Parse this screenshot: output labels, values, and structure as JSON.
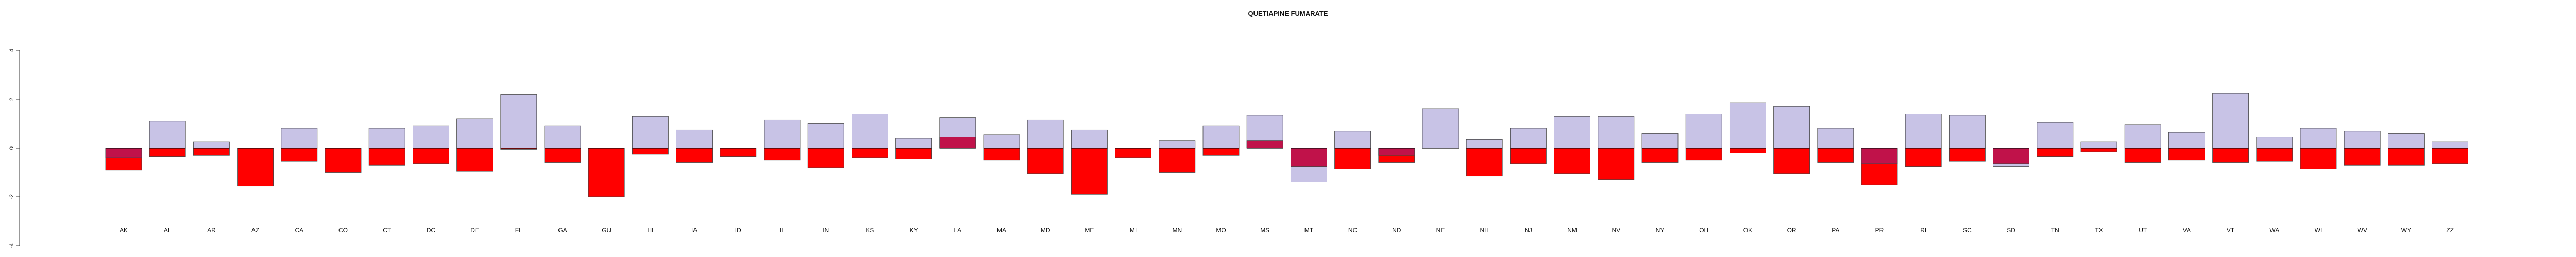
{
  "chart_data": {
    "type": "bar",
    "title": "QUETIAPINE FUMARATE",
    "xlabel": "",
    "ylabel": "",
    "ylim": [
      -4,
      4
    ],
    "y_ticks": [
      -4,
      -2,
      0,
      2,
      4
    ],
    "y_tick_labels": [
      "-4",
      "-2",
      "0",
      "2",
      "4"
    ],
    "categories": [
      "AK",
      "AL",
      "AR",
      "AZ",
      "CA",
      "CO",
      "CT",
      "DC",
      "DE",
      "FL",
      "GA",
      "GU",
      "HI",
      "IA",
      "ID",
      "IL",
      "IN",
      "KS",
      "KY",
      "LA",
      "MA",
      "MD",
      "ME",
      "MI",
      "MN",
      "MO",
      "MS",
      "MT",
      "NC",
      "ND",
      "NE",
      "NH",
      "NJ",
      "NM",
      "NV",
      "NY",
      "OH",
      "OK",
      "OR",
      "PA",
      "PR",
      "RI",
      "SC",
      "SD",
      "TN",
      "TX",
      "UT",
      "VA",
      "VT",
      "WA",
      "WI",
      "WV",
      "WY",
      "ZZ"
    ],
    "series": [
      {
        "values": [
          -0.4,
          1.1,
          0.25,
          0.0,
          0.8,
          0.0,
          0.8,
          0.9,
          1.2,
          2.2,
          0.9,
          0.0,
          1.3,
          0.75,
          0.0,
          1.15,
          1.0,
          1.4,
          0.4,
          1.25,
          0.55,
          1.15,
          0.75,
          0.0,
          0.3,
          0.9,
          1.35,
          -1.4,
          0.7,
          -0.3,
          1.6,
          0.35,
          0.8,
          1.3,
          1.3,
          0.6,
          1.4,
          1.85,
          1.7,
          0.8,
          -0.65,
          1.4,
          1.35,
          -0.75,
          1.05,
          0.25,
          0.95,
          0.65,
          2.25,
          0.45,
          0.8,
          0.7,
          0.6,
          0.25
        ],
        "color": "#c8c3e6"
      },
      {
        "values": [
          -0.9,
          -0.35,
          -0.3,
          -1.55,
          -0.55,
          -1.0,
          -0.7,
          -0.65,
          -0.95,
          -0.05,
          -0.6,
          -2.0,
          -0.25,
          -0.6,
          -0.35,
          -0.5,
          -0.8,
          -0.4,
          -0.45,
          0.45,
          -0.5,
          -1.05,
          -1.9,
          -0.4,
          -1.0,
          -0.3,
          0.3,
          -0.75,
          -0.85,
          -0.6,
          0.0,
          -1.15,
          -0.65,
          -1.05,
          -1.3,
          -0.6,
          -0.5,
          -0.2,
          -1.05,
          -0.6,
          -1.5,
          -0.75,
          -0.55,
          -0.65,
          -0.35,
          -0.15,
          -0.6,
          -0.5,
          -0.6,
          -0.55,
          -0.85,
          -0.7,
          -0.7,
          -0.65
        ],
        "color": "#ff0000"
      }
    ],
    "overlap_color": "#c0124a",
    "grid": false,
    "legend": "none"
  }
}
